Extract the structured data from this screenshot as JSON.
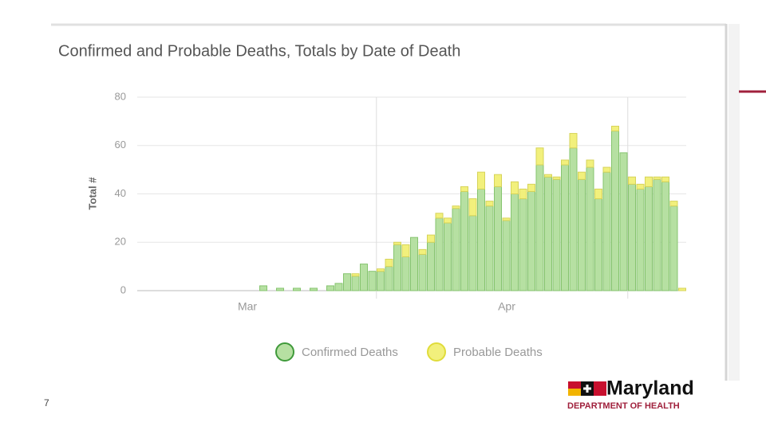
{
  "page_number": "7",
  "logo": {
    "name": "Maryland",
    "subtitle": "DEPARTMENT OF HEALTH"
  },
  "chart_data": {
    "type": "bar",
    "stacked": true,
    "title": "Confirmed and Probable Deaths, Totals by Date of Death",
    "y_label": "Total #",
    "months": [
      "Mar",
      "Apr"
    ],
    "categories": [
      null,
      null,
      null,
      null,
      null,
      null,
      null,
      null,
      null,
      null,
      null,
      null,
      null,
      null,
      null,
      null,
      null,
      null,
      null,
      null,
      null,
      null,
      null,
      null,
      null,
      null,
      null,
      null,
      null,
      null,
      null,
      null,
      null,
      null,
      null,
      null,
      null,
      null,
      null,
      null,
      null,
      null,
      null,
      null,
      null,
      null,
      null,
      null,
      null,
      null,
      null
    ],
    "series": [
      {
        "name": "Confirmed Deaths",
        "color": "#b6e0a2",
        "stroke": "#86c46f",
        "values": [
          2,
          0,
          1,
          0,
          1,
          0,
          1,
          0,
          2,
          3,
          7,
          6,
          11,
          8,
          8,
          10,
          19,
          14,
          22,
          15,
          20,
          30,
          28,
          34,
          41,
          31,
          42,
          35,
          43,
          29,
          40,
          38,
          41,
          52,
          47,
          46,
          52,
          59,
          46,
          51,
          38,
          49,
          66,
          57,
          44,
          42,
          43,
          46,
          45,
          35,
          0
        ]
      },
      {
        "name": "Probable Deaths",
        "color": "#f2f07c",
        "stroke": "#d6d35a",
        "values": [
          0,
          0,
          0,
          0,
          0,
          0,
          0,
          0,
          0,
          0,
          0,
          1,
          0,
          0,
          1,
          3,
          1,
          5,
          0,
          2,
          3,
          2,
          2,
          1,
          2,
          7,
          7,
          2,
          5,
          1,
          5,
          4,
          3,
          7,
          1,
          1,
          2,
          6,
          3,
          3,
          4,
          2,
          2,
          0,
          3,
          2,
          4,
          1,
          2,
          2,
          1
        ]
      }
    ],
    "ylim": [
      0,
      80
    ],
    "yticks": [
      0,
      20,
      40,
      60,
      80
    ],
    "grid": true
  }
}
